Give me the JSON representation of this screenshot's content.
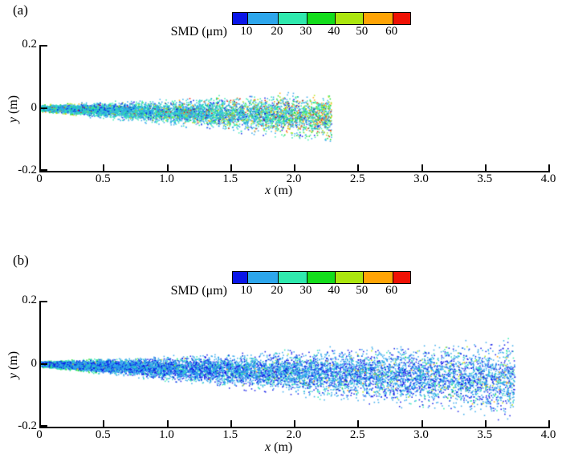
{
  "chart_data": [
    {
      "type": "scatter",
      "panel_label": "(a)",
      "colorbar": {
        "title": "SMD (μm)",
        "tick_labels": [
          "10",
          "20",
          "30",
          "40",
          "50",
          "60"
        ],
        "bin_edges": [
          10,
          20,
          30,
          40,
          50,
          60
        ],
        "colors": [
          "#0a16e8",
          "#2da6ec",
          "#2fe9ae",
          "#14dd1c",
          "#abe60e",
          "#ffa405",
          "#f01205"
        ]
      },
      "x_axis": {
        "var": "x",
        "unit": " (m)",
        "min": 0,
        "max": 4,
        "tick_labels": [
          "0",
          "0.5",
          "1.0",
          "1.5",
          "2.0",
          "2.5",
          "3.0",
          "3.5",
          "4.0"
        ]
      },
      "y_axis": {
        "var": "y",
        "unit": " (m)",
        "min": -0.2,
        "max": 0.2,
        "tick_labels": [
          "0.2",
          "0",
          "-0.2"
        ]
      },
      "spray": {
        "description": "Droplet plume from nozzle at origin extending to x≈2.3 m; mostly 10–30 μm (cyan/teal) droplets with coarser 30–65 μm droplets increasingly mixed downstream and at plume edges; slight downward drift",
        "seed": 42,
        "n": 6800,
        "x_max": 2.28,
        "x_pow": 1.2,
        "drift_per_m": -0.012,
        "halfwidth_base": 0.013,
        "halfwidth_per_m": 0.034,
        "smd_base_min": 9,
        "smd_base_span": 17,
        "smd_base_pow": 1.6,
        "mid_p": 0.3,
        "mid_min": 17,
        "mid_span": 12,
        "warm_p0": 0.05,
        "warm_p_gain": 0.4,
        "warm_p_pow": 2.0,
        "warm_min": 26,
        "warm_span": 39,
        "edge_x_limit": 0.3,
        "edge_g_min": 0.72,
        "edge_min": 28,
        "edge_span": 26
      }
    },
    {
      "type": "scatter",
      "panel_label": "(b)",
      "colorbar": {
        "title": "SMD (μm)",
        "tick_labels": [
          "10",
          "20",
          "30",
          "40",
          "50",
          "60"
        ],
        "bin_edges": [
          10,
          20,
          30,
          40,
          50,
          60
        ],
        "colors": [
          "#0a16e8",
          "#2da6ec",
          "#2fe9ae",
          "#14dd1c",
          "#abe60e",
          "#ffa405",
          "#f01205"
        ]
      },
      "x_axis": {
        "var": "x",
        "unit": " (m)",
        "min": 0,
        "max": 4,
        "tick_labels": [
          "0",
          "0.5",
          "1.0",
          "1.5",
          "2.0",
          "2.5",
          "3.0",
          "3.5",
          "4.0"
        ]
      },
      "y_axis": {
        "var": "y",
        "unit": " (m)",
        "min": -0.2,
        "max": 0.2,
        "tick_labels": [
          "0.2",
          "0",
          "-0.2"
        ]
      },
      "spray": {
        "description": "Longer plume extending to x≈3.7 m; predominantly fine 8–20 μm (blue) droplets with cyan/teal at plume edges and sparse 35–58 μm yellow-green specks downstream; wider cone with slight downward drift",
        "seed": 7,
        "n": 11000,
        "x_max": 3.72,
        "x_pow": 1.3,
        "drift_per_m": -0.013,
        "halfwidth_base": 0.011,
        "halfwidth_per_m": 0.036,
        "smd_base_min": 8,
        "smd_base_span": 11,
        "smd_base_pow": 1.8,
        "mid_p": 0.22,
        "mid_min": 14,
        "mid_span": 13,
        "warm_p0": 0.012,
        "warm_p_gain": 0.05,
        "warm_p_pow": 2.0,
        "warm_min": 36,
        "warm_span": 22,
        "edge_x_limit": 0.45,
        "edge_g_min": 0.7,
        "edge_min": 20,
        "edge_span": 14
      }
    }
  ]
}
